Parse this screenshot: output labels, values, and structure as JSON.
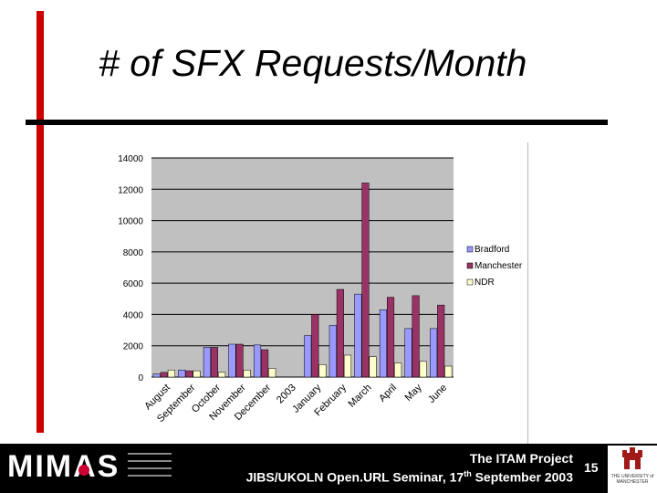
{
  "slide": {
    "title": "# of SFX Requests/Month",
    "page_number": "15",
    "footer_line1": "The ITAM Project",
    "footer_line2_pre": "JIBS/UKOLN Open.URL Seminar, 17",
    "footer_line2_sup": "th",
    "footer_line2_post": " September 2003",
    "logo_text": "MIMAS",
    "crest_caption": "THE UNIVERSITY of MANCHESTER"
  },
  "colors": {
    "accent": "#cc0000",
    "plot_bg": "#c0c0c0",
    "bradford": "#9999ff",
    "manchester": "#993366",
    "ndr": "#ffffcc"
  },
  "chart_data": {
    "type": "bar",
    "title": "",
    "xlabel": "",
    "ylabel": "",
    "ylim": [
      0,
      14000
    ],
    "yticks": [
      0,
      2000,
      4000,
      6000,
      8000,
      10000,
      12000,
      14000
    ],
    "grid": true,
    "legend": "right",
    "categories": [
      "August",
      "September",
      "October",
      "November",
      "December",
      "2003",
      "January",
      "February",
      "March",
      "April",
      "May",
      "June"
    ],
    "series": [
      {
        "name": "Bradford",
        "color": "#9999ff",
        "values": [
          200,
          450,
          1900,
          2100,
          2050,
          null,
          2650,
          3300,
          5300,
          4300,
          3100,
          3100
        ]
      },
      {
        "name": "Manchester",
        "color": "#993366",
        "values": [
          300,
          400,
          1900,
          2100,
          1750,
          null,
          4000,
          5600,
          12400,
          5100,
          5200,
          4600
        ]
      },
      {
        "name": "NDR",
        "color": "#ffffcc",
        "values": [
          450,
          400,
          300,
          450,
          550,
          null,
          800,
          1400,
          1300,
          900,
          1000,
          700
        ]
      }
    ]
  }
}
